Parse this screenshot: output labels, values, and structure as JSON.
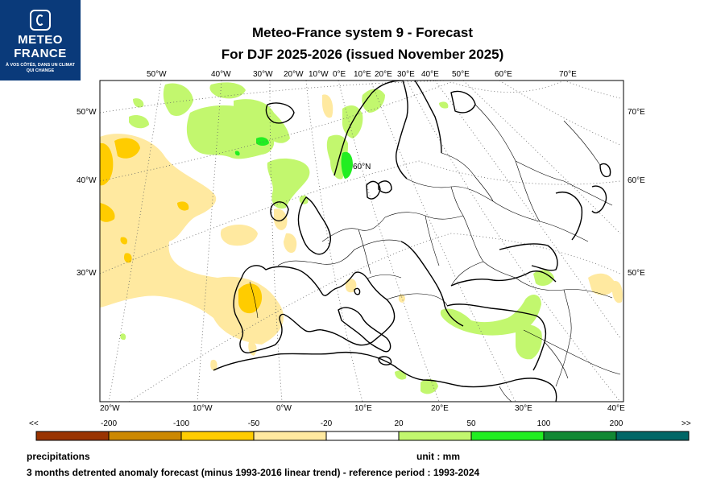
{
  "logo": {
    "line1": "METEO",
    "line2": "FRANCE",
    "tagline": "À VOS CÔTÉS, DANS UN CLIMAT QUI CHANGE"
  },
  "title": {
    "line1": "Meteo-France system 9  -  Forecast",
    "line2": "For DJF 2025-2026      (issued November 2025)"
  },
  "map": {
    "top_lon_labels": [
      "50°W",
      "40°W",
      "30°W",
      "20°W",
      "10°W",
      "0°E",
      "10°E",
      "20°E",
      "30°E",
      "40°E",
      "50°E",
      "60°E",
      "70°E"
    ],
    "bottom_lon_labels": [
      "20°W",
      "10°W",
      "0°W",
      "10°E",
      "20°E",
      "30°E",
      "40°E"
    ],
    "left_lat_labels": [
      "50°W",
      "40°W",
      "30°W"
    ],
    "right_lat_labels": [
      "70°E",
      "60°E",
      "50°E"
    ],
    "inner_label": "60°N"
  },
  "legend": {
    "left_arrow": "<<",
    "right_arrow": ">>",
    "ticks": [
      "-200",
      "-100",
      "-50",
      "-20",
      "20",
      "50",
      "100",
      "200"
    ],
    "colors": [
      "#993300",
      "#cc8800",
      "#ffcc00",
      "#ffe9a0",
      "#ffffff",
      "#c2f76e",
      "#22ee22",
      "#118833",
      "#006666"
    ]
  },
  "footer": {
    "variable": "precipitations",
    "unit": "unit : mm",
    "description": "3 months detrented anomaly forecast (minus 1993-2016 linear trend) - reference period : 1993-2024"
  }
}
